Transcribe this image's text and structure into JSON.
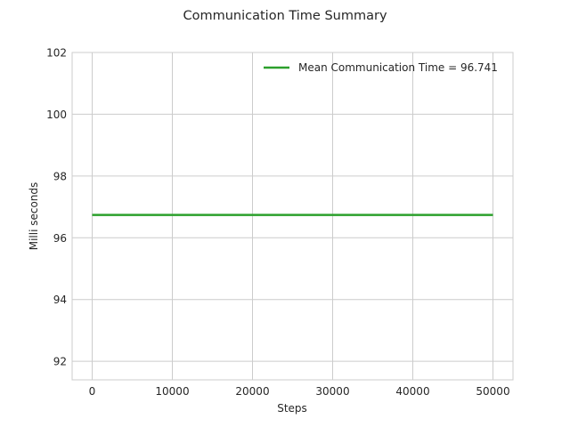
{
  "chart_data": {
    "type": "line",
    "title": "Communication Time Summary",
    "xlabel": "Steps",
    "ylabel": "Milli seconds",
    "xlim": [
      -2500,
      52500
    ],
    "ylim": [
      91.4,
      102.0
    ],
    "xticks": [
      0,
      10000,
      20000,
      30000,
      40000,
      50000
    ],
    "xtick_labels": [
      "0",
      "10000",
      "20000",
      "30000",
      "40000",
      "50000"
    ],
    "yticks": [
      92,
      94,
      96,
      98,
      100,
      102
    ],
    "ytick_labels": [
      "92",
      "94",
      "96",
      "98",
      "100",
      "102"
    ],
    "grid": true,
    "legend_position": "top-right",
    "series": [
      {
        "name": "Mean Communication Time = 96.741",
        "color": "#2ca02c",
        "x": [
          0,
          50000
        ],
        "y": [
          96.741,
          96.741
        ]
      }
    ]
  }
}
